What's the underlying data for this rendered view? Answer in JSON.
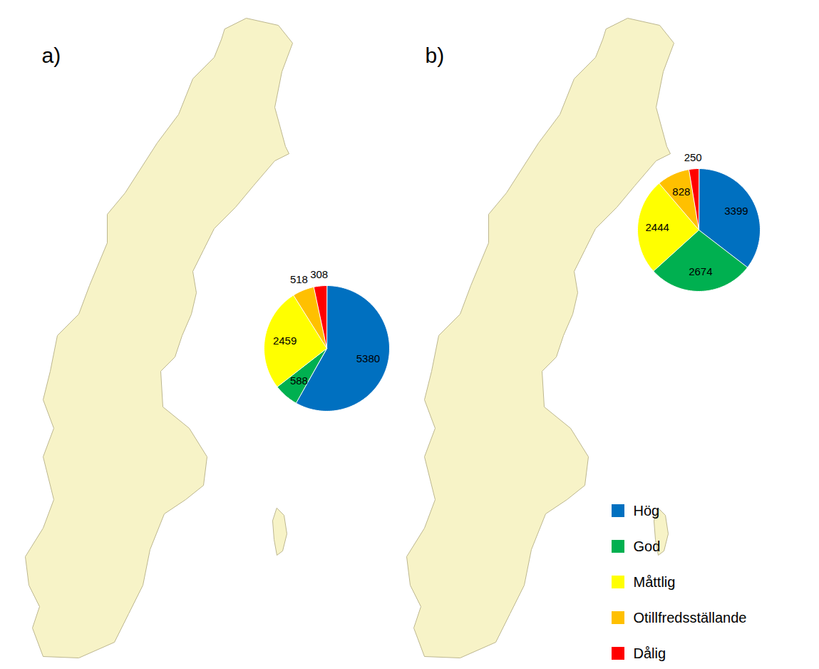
{
  "chart_data": [
    {
      "type": "pie",
      "title": "a)",
      "categories": [
        "Hög",
        "God",
        "Måttlig",
        "Otillfredsställande",
        "Dålig"
      ],
      "values": [
        5380,
        588,
        2459,
        518,
        308
      ],
      "colors": [
        "#0070c0",
        "#00b050",
        "#ffff00",
        "#ffc000",
        "#ff0000"
      ],
      "data_labels": true
    },
    {
      "type": "pie",
      "title": "b)",
      "categories": [
        "Hög",
        "God",
        "Måttlig",
        "Otillfredsställande",
        "Dålig"
      ],
      "values": [
        3399,
        2674,
        2444,
        828,
        250
      ],
      "colors": [
        "#0070c0",
        "#00b050",
        "#ffff00",
        "#ffc000",
        "#ff0000"
      ],
      "data_labels": true,
      "legend": "bottom-right"
    }
  ]
}
